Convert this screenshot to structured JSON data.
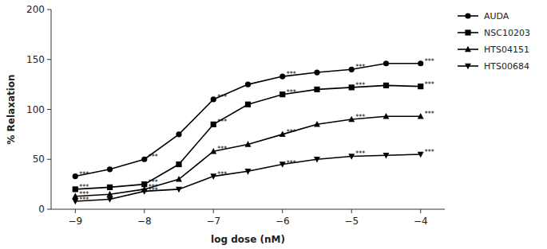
{
  "chart_data": {
    "type": "line",
    "xlabel": "log dose (nM)",
    "ylabel": "% Relaxation",
    "x": [
      -9,
      -8.5,
      -8,
      -7.5,
      -7,
      -6.5,
      -6,
      -5.5,
      -5,
      -4.5,
      -4
    ],
    "xlim": [
      -9.35,
      -3.65
    ],
    "xticks": [
      {
        "value": -9,
        "label": "−9"
      },
      {
        "value": -8,
        "label": "−8"
      },
      {
        "value": -7,
        "label": "−7"
      },
      {
        "value": -6,
        "label": "−6"
      },
      {
        "value": -5,
        "label": "−5"
      },
      {
        "value": -4,
        "label": "−4"
      }
    ],
    "ylim": [
      0,
      200
    ],
    "yticks": [
      0,
      50,
      100,
      150,
      200
    ],
    "grid": false,
    "legend": "right",
    "series": [
      {
        "name": "AUDA",
        "color": "#000000",
        "marker": "circle",
        "values": [
          33,
          40,
          50,
          75,
          110,
          125,
          133,
          137,
          140,
          146,
          146
        ]
      },
      {
        "name": "NSC10203",
        "color": "#000000",
        "marker": "square",
        "values": [
          20,
          22,
          25,
          45,
          85,
          105,
          115,
          120,
          122,
          124,
          123
        ]
      },
      {
        "name": "HTS04151",
        "color": "#000000",
        "marker": "triangle-up",
        "values": [
          13,
          15,
          20,
          30,
          58,
          65,
          75,
          85,
          90,
          93,
          93
        ]
      },
      {
        "name": "HTS00684",
        "color": "#000000",
        "marker": "triangle-down",
        "values": [
          8,
          10,
          18,
          20,
          33,
          38,
          45,
          50,
          53,
          54,
          55
        ]
      }
    ],
    "annotations": [
      {
        "text": "***",
        "x": -9,
        "y": 35
      },
      {
        "text": "***",
        "x": -8,
        "y": 52
      },
      {
        "text": "***",
        "x": -7,
        "y": 112
      },
      {
        "text": "***",
        "x": -6,
        "y": 135
      },
      {
        "text": "***",
        "x": -5,
        "y": 142
      },
      {
        "text": "***",
        "x": -4,
        "y": 148
      },
      {
        "text": "***",
        "x": -9,
        "y": 22
      },
      {
        "text": "***",
        "x": -8,
        "y": 27
      },
      {
        "text": "***",
        "x": -7,
        "y": 87
      },
      {
        "text": "***",
        "x": -6,
        "y": 117
      },
      {
        "text": "***",
        "x": -5,
        "y": 124
      },
      {
        "text": "***",
        "x": -4,
        "y": 125
      },
      {
        "text": "***",
        "x": -9,
        "y": 15
      },
      {
        "text": "***",
        "x": -8,
        "y": 22
      },
      {
        "text": "***",
        "x": -7,
        "y": 60
      },
      {
        "text": "***",
        "x": -6,
        "y": 77
      },
      {
        "text": "***",
        "x": -5,
        "y": 92
      },
      {
        "text": "***",
        "x": -4,
        "y": 95
      },
      {
        "text": "***",
        "x": -9,
        "y": 9
      },
      {
        "text": "***",
        "x": -8,
        "y": 19
      },
      {
        "text": "***",
        "x": -7,
        "y": 35
      },
      {
        "text": "***",
        "x": -6,
        "y": 46
      },
      {
        "text": "***",
        "x": -5,
        "y": 55
      },
      {
        "text": "***",
        "x": -4,
        "y": 57
      }
    ]
  }
}
